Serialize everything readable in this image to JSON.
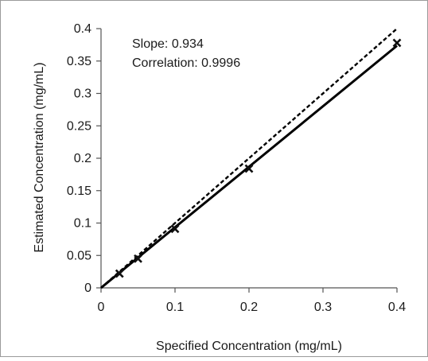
{
  "chart_data": {
    "type": "scatter",
    "title": "",
    "xlabel": "Specified Concentration (mg/mL)",
    "ylabel": "Estimated Concentration (mg/mL)",
    "xlim": [
      0,
      0.4
    ],
    "ylim": [
      0,
      0.4
    ],
    "xticks": [
      "0",
      "0.1",
      "0.2",
      "0.3",
      "0.4"
    ],
    "yticks": [
      "0",
      "0.05",
      "0.1",
      "0.15",
      "0.2",
      "0.25",
      "0.3",
      "0.35",
      "0.4"
    ],
    "grid": false,
    "legend": "none",
    "annotations": [
      "Slope: 0.934",
      "Correlation: 0.9996"
    ],
    "series": [
      {
        "kind": "points",
        "marker": "x",
        "color": "#111111",
        "x": [
          0,
          0.025,
          0.05,
          0.1,
          0.2,
          0.4
        ],
        "y": [
          0,
          0.022,
          0.045,
          0.091,
          0.184,
          0.378
        ]
      },
      {
        "kind": "fit-line",
        "style": "solid",
        "color": "#000000",
        "x": [
          0,
          0.4
        ],
        "y": [
          0,
          0.3736
        ]
      },
      {
        "kind": "identity-line",
        "style": "dashed",
        "color": "#000000",
        "x": [
          0,
          0.4
        ],
        "y": [
          0,
          0.4
        ]
      }
    ]
  }
}
